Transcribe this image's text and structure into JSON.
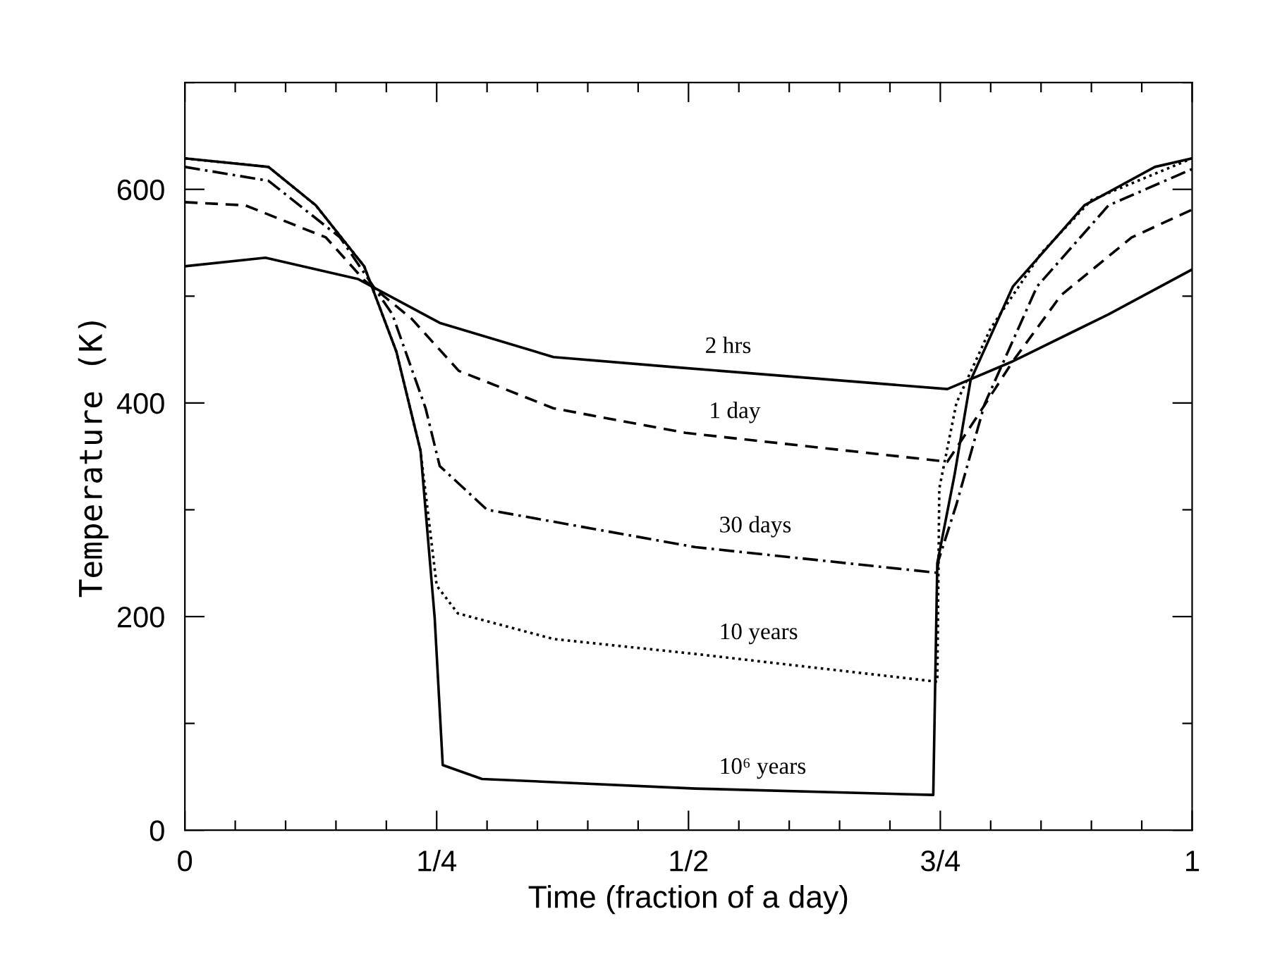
{
  "chart_data": {
    "type": "line",
    "xlabel": "Time (fraction of a day)",
    "ylabel": "Temperature (K)",
    "xlim": [
      0,
      1
    ],
    "ylim": [
      0,
      700
    ],
    "xticks": [
      {
        "value": 0,
        "label": "0"
      },
      {
        "value": 0.05,
        "label": null
      },
      {
        "value": 0.1,
        "label": null
      },
      {
        "value": 0.15,
        "label": null
      },
      {
        "value": 0.2,
        "label": null
      },
      {
        "value": 0.25,
        "label": "1/4"
      },
      {
        "value": 0.3,
        "label": null
      },
      {
        "value": 0.35,
        "label": null
      },
      {
        "value": 0.4,
        "label": null
      },
      {
        "value": 0.45,
        "label": null
      },
      {
        "value": 0.5,
        "label": "1/2"
      },
      {
        "value": 0.55,
        "label": null
      },
      {
        "value": 0.6,
        "label": null
      },
      {
        "value": 0.65,
        "label": null
      },
      {
        "value": 0.7,
        "label": null
      },
      {
        "value": 0.75,
        "label": "3/4"
      },
      {
        "value": 0.8,
        "label": null
      },
      {
        "value": 0.85,
        "label": null
      },
      {
        "value": 0.9,
        "label": null
      },
      {
        "value": 0.95,
        "label": null
      },
      {
        "value": 1,
        "label": "1"
      }
    ],
    "yticks": [
      0,
      {
        "value": 100,
        "label": null
      },
      200,
      {
        "value": 300,
        "label": null
      },
      400,
      {
        "value": 500,
        "label": null
      },
      600,
      {
        "value": 700,
        "label": null
      }
    ],
    "grid": false,
    "legend": false,
    "marker": "none",
    "series": [
      {
        "name": "2 hrs",
        "color": "#000000",
        "line_style": "solid",
        "x": [
          0,
          0.08,
          0.172,
          0.253,
          0.366,
          0.493,
          0.757,
          0.822,
          0.917,
          1.0
        ],
        "values": [
          528,
          536,
          516,
          475,
          443,
          433,
          413,
          439,
          483,
          525
        ]
      },
      {
        "name": "1 day",
        "color": "#000000",
        "line_style": "dashed",
        "x": [
          0,
          0.06,
          0.14,
          0.178,
          0.225,
          0.272,
          0.366,
          0.497,
          0.757,
          0.785,
          0.822,
          0.87,
          0.94,
          1.0
        ],
        "values": [
          588,
          585,
          555,
          515,
          479,
          430,
          395,
          372,
          345,
          385,
          439,
          501,
          555,
          581
        ]
      },
      {
        "name": "30 days",
        "color": "#000000",
        "line_style": "dashdot",
        "x": [
          0,
          0.083,
          0.154,
          0.206,
          0.239,
          0.253,
          0.3,
          0.507,
          0.747,
          0.748,
          0.766,
          0.794,
          0.846,
          0.917,
          1.0
        ],
        "values": [
          621,
          608,
          555,
          483,
          395,
          341,
          300,
          265,
          241,
          252,
          305,
          399,
          509,
          585,
          619
        ]
      },
      {
        "name": "10 years",
        "color": "#000000",
        "line_style": "dotted",
        "x": [
          0,
          0.083,
          0.13,
          0.178,
          0.21,
          0.234,
          0.25,
          0.271,
          0.366,
          0.507,
          0.747,
          0.749,
          0.766,
          0.8,
          0.85,
          0.9,
          1.0
        ],
        "values": [
          629,
          621,
          585,
          528,
          448,
          355,
          229,
          203,
          179,
          165,
          139,
          320,
          400,
          470,
          540,
          590,
          629
        ]
      },
      {
        "name": "10⁶ years",
        "color": "#000000",
        "line_style": "solid",
        "x": [
          0,
          0.083,
          0.13,
          0.178,
          0.21,
          0.234,
          0.248,
          0.256,
          0.295,
          0.507,
          0.743,
          0.747,
          0.764,
          0.78,
          0.822,
          0.893,
          0.963,
          1.0
        ],
        "values": [
          629,
          621,
          585,
          528,
          448,
          355,
          199,
          61,
          48,
          39,
          33,
          250,
          332,
          421,
          509,
          585,
          621,
          629
        ]
      }
    ]
  }
}
